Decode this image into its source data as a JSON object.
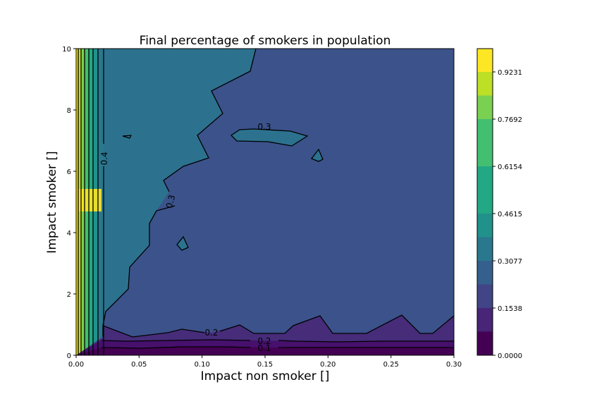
{
  "chart_data": {
    "type": "contourf",
    "title": "Final percentage of smokers in population",
    "xlabel": "Impact non smoker []",
    "ylabel": "Impact smoker []",
    "xlim": [
      0.0,
      0.3
    ],
    "ylim": [
      0,
      10
    ],
    "x_ticks": [
      "0.00",
      "0.05",
      "0.10",
      "0.15",
      "0.20",
      "0.25",
      "0.30"
    ],
    "y_ticks": [
      "0",
      "2",
      "4",
      "6",
      "8",
      "10"
    ],
    "colorbar": {
      "range": [
        0.0,
        1.0
      ],
      "levels": 13,
      "tick_labels": [
        "0.0000",
        "0.1538",
        "0.3077",
        "0.4615",
        "0.6154",
        "0.7692",
        "0.9231"
      ],
      "band_colors": [
        "#440154",
        "#482576",
        "#414487",
        "#35608d",
        "#2a788e",
        "#21918c",
        "#22a884",
        "#43bf71",
        "#7ad151",
        "#bddf26",
        "#fde725"
      ]
    },
    "regions": [
      {
        "level_range": [
          0.0,
          0.077
        ],
        "description": "thin band near impact smoker 0 to 0.25"
      },
      {
        "level_range": [
          0.077,
          0.154
        ],
        "description": "band impact smoker 0.25 to 0.6"
      },
      {
        "level_range": [
          0.154,
          0.231
        ],
        "description": "band up to impact smoker about 0.7-1.3"
      },
      {
        "level_range": [
          0.231,
          0.308
        ],
        "description": "large region covering most of plot"
      },
      {
        "level_range": [
          0.308,
          0.385
        ],
        "description": "region near impact non smoker 0.02-0.06, upper left"
      },
      {
        "level_range": [
          0.385,
          1.0
        ],
        "description": "narrow vertical bands near impact non smoker 0 to 0.02"
      }
    ],
    "contour_labels": [
      {
        "text": "0.4",
        "x": 0.022,
        "y": 6.5
      },
      {
        "text": "0.3",
        "x": 0.075,
        "y": 5.0
      },
      {
        "text": "0.3",
        "x": 0.15,
        "y": 7.4
      },
      {
        "text": "0.2",
        "x": 0.107,
        "y": 0.7
      },
      {
        "text": "0.2",
        "x": 0.15,
        "y": 0.45
      },
      {
        "text": "0.1",
        "x": 0.15,
        "y": 0.22
      }
    ]
  }
}
